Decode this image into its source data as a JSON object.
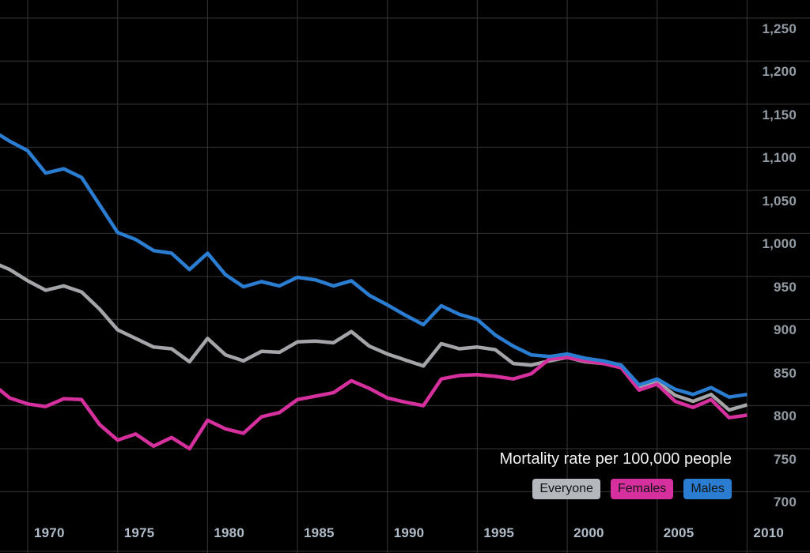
{
  "chart_data": {
    "type": "line",
    "title": "Mortality rate per 100,000 people",
    "grid": true,
    "legend_position": "bottom-right",
    "x_domain": [
      1968.46,
      2013.5
    ],
    "y_domain": [
      628.9,
      1271.0
    ],
    "baseline_value": 631,
    "colors": {
      "background": "#000000",
      "grid": "#2e2e2e",
      "y_tick_text": "#939ba4",
      "x_tick_text": "#b0bcc8",
      "title_text": "#f2f2f2",
      "chip_text": "#131313"
    },
    "y_ticks": [
      {
        "value": 1250,
        "label": "1,250"
      },
      {
        "value": 1200,
        "label": "1,200"
      },
      {
        "value": 1150,
        "label": "1,150"
      },
      {
        "value": 1100,
        "label": "1,100"
      },
      {
        "value": 1050,
        "label": "1,050"
      },
      {
        "value": 1000,
        "label": "1,000"
      },
      {
        "value": 950,
        "label": "950"
      },
      {
        "value": 900,
        "label": "900"
      },
      {
        "value": 850,
        "label": "850"
      },
      {
        "value": 800,
        "label": "800"
      },
      {
        "value": 750,
        "label": "750"
      },
      {
        "value": 700,
        "label": "700"
      }
    ],
    "x_ticks": [
      {
        "value": 1970,
        "label": "1970"
      },
      {
        "value": 1975,
        "label": "1975"
      },
      {
        "value": 1980,
        "label": "1980"
      },
      {
        "value": 1985,
        "label": "1985"
      },
      {
        "value": 1990,
        "label": "1990"
      },
      {
        "value": 1995,
        "label": "1995"
      },
      {
        "value": 2000,
        "label": "2000"
      },
      {
        "value": 2005,
        "label": "2005"
      },
      {
        "value": 2010,
        "label": "2010"
      }
    ],
    "years": [
      1968,
      1969,
      1970,
      1971,
      1972,
      1973,
      1974,
      1975,
      1976,
      1977,
      1978,
      1979,
      1980,
      1981,
      1982,
      1983,
      1984,
      1985,
      1986,
      1987,
      1988,
      1989,
      1990,
      1991,
      1992,
      1993,
      1994,
      1995,
      1996,
      1997,
      1998,
      1999,
      2000,
      2001,
      2002,
      2003,
      2004,
      2005,
      2006,
      2007,
      2008,
      2009,
      2010
    ],
    "series": [
      {
        "name": "Everyone",
        "color": "#a3a5a8",
        "values": [
          967,
          958,
          945,
          934,
          939,
          932,
          912,
          888,
          878,
          868,
          866,
          851,
          878,
          859,
          852,
          863,
          862,
          874,
          875,
          873,
          886,
          869,
          860,
          853,
          846,
          872,
          866,
          868,
          865,
          849,
          847,
          852,
          856,
          851,
          849,
          845,
          821,
          828,
          812,
          805,
          813,
          795,
          801
        ]
      },
      {
        "name": "Females",
        "color": "#d6309e",
        "values": [
          826,
          809,
          802,
          799,
          808,
          807,
          778,
          760,
          767,
          753,
          763,
          750,
          783,
          773,
          768,
          787,
          792,
          807,
          811,
          815,
          829,
          820,
          809,
          804,
          800,
          831,
          835,
          836,
          834,
          831,
          837,
          854,
          856,
          852,
          849,
          844,
          818,
          825,
          805,
          798,
          807,
          786,
          789
        ]
      },
      {
        "name": "Males",
        "color": "#2a7dd1",
        "values": [
          1120,
          1107,
          1096,
          1070,
          1075,
          1065,
          1033,
          1001,
          993,
          980,
          977,
          958,
          977,
          952,
          938,
          944,
          939,
          949,
          946,
          939,
          945,
          928,
          917,
          905,
          894,
          916,
          906,
          900,
          882,
          869,
          859,
          857,
          860,
          855,
          852,
          847,
          824,
          831,
          819,
          813,
          821,
          810,
          813
        ]
      }
    ],
    "legend": [
      {
        "label": "Everyone",
        "color": "#b4b8bd"
      },
      {
        "label": "Females",
        "color": "#d6309e"
      },
      {
        "label": "Males",
        "color": "#2a7dd1"
      }
    ]
  }
}
